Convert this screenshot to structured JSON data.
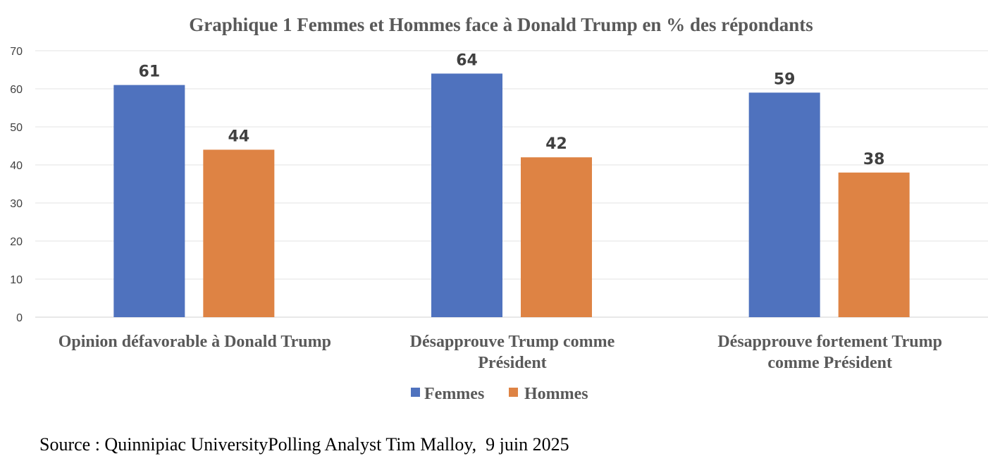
{
  "chart_data": {
    "type": "bar",
    "title": "Graphique 1 Femmes et Hommes face à Donald Trump en % des répondants",
    "categories": [
      [
        "Opinion défavorable à Donald Trump"
      ],
      [
        "Désapprouve Trump comme",
        "Président"
      ],
      [
        "Désapprouve fortement Trump",
        "comme Président"
      ]
    ],
    "series": [
      {
        "name": "Femmes",
        "values": [
          61,
          64,
          59
        ],
        "color": "#4F72BE"
      },
      {
        "name": "Hommes",
        "values": [
          44,
          42,
          38
        ],
        "color": "#DE8344"
      }
    ],
    "yticks": [
      "0",
      "10",
      "20",
      "30",
      "40",
      "50",
      "60",
      "70"
    ],
    "ylim": [
      0,
      70
    ],
    "grid": true,
    "legend_position": "bottom",
    "data_labels": true
  },
  "source": "Source : Quinnipiac UniversityPolling Analyst Tim Malloy,  9 juin 2025"
}
